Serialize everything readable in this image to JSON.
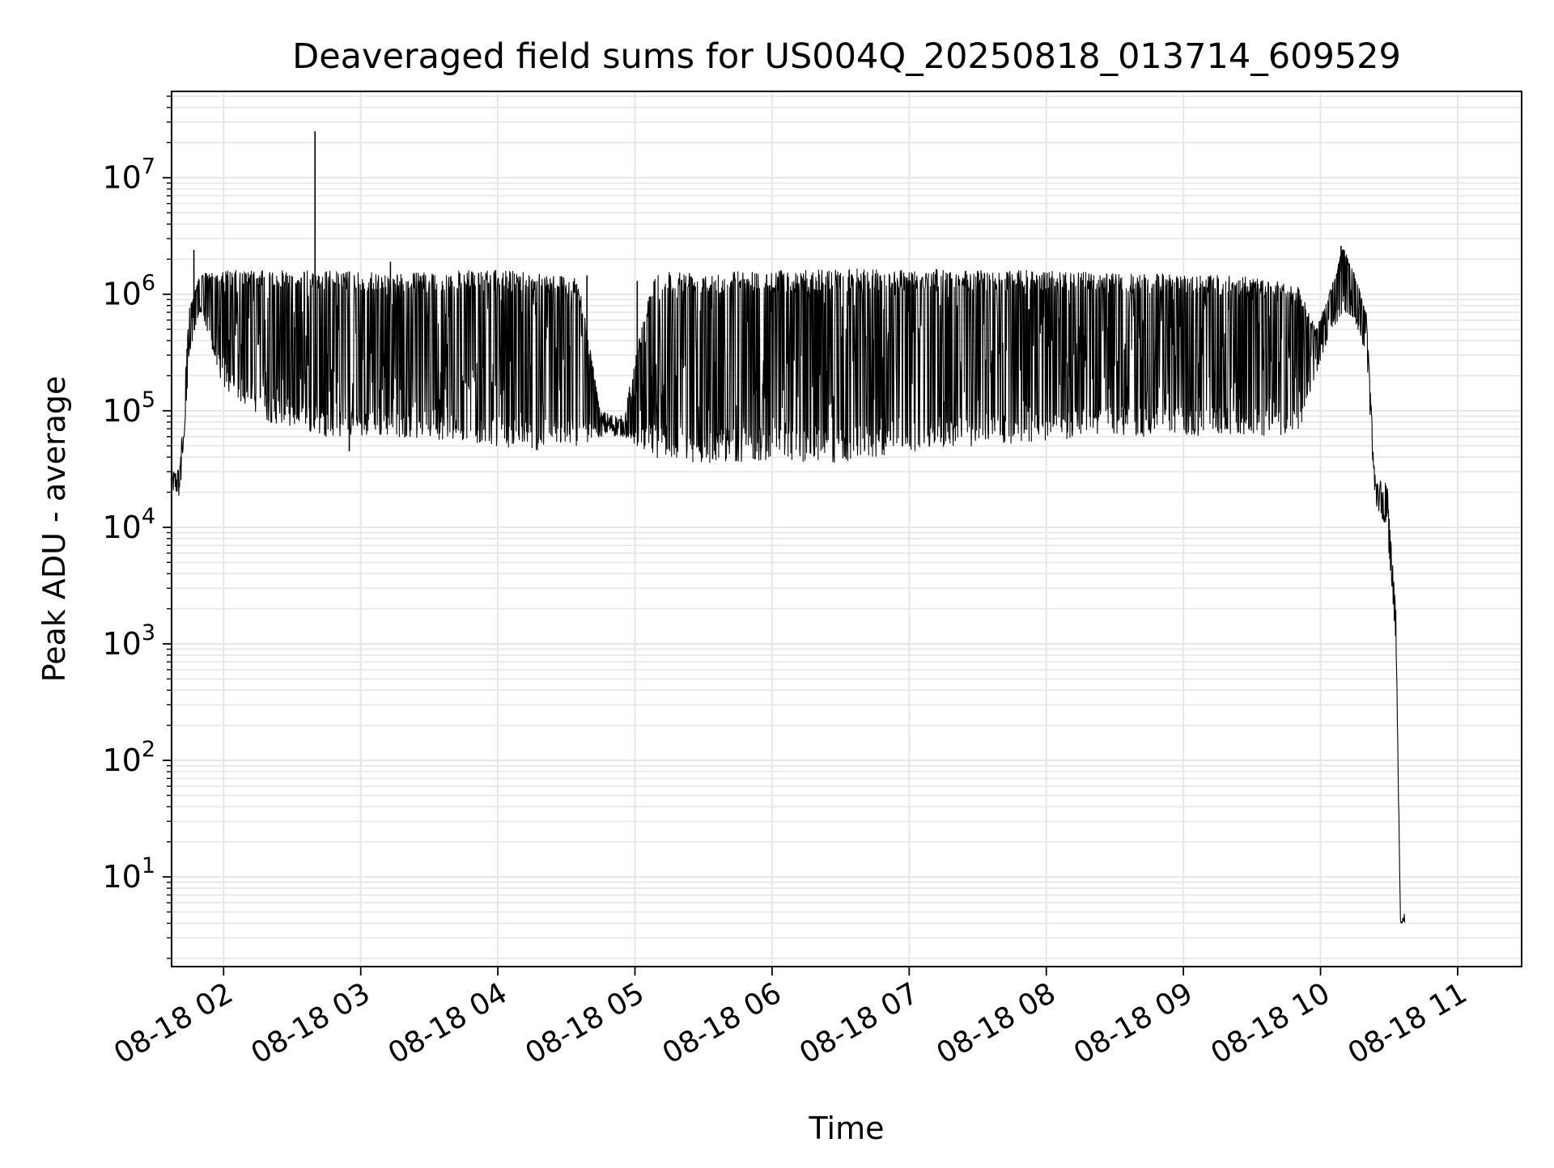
{
  "chart_data": {
    "type": "line",
    "title": "Deaveraged field sums for US004Q_20250818_013714_609529",
    "xlabel": "Time",
    "ylabel": "Peak ADU - average",
    "y_scale": "log",
    "ylim": [
      1.7,
      55000000
    ],
    "xlim": [
      "2025-08-18 01:37:14",
      "2025-08-18 11:28:00"
    ],
    "x_ticks": [
      {
        "value": "2025-08-18 02:00",
        "label": "08-18 02"
      },
      {
        "value": "2025-08-18 03:00",
        "label": "08-18 03"
      },
      {
        "value": "2025-08-18 04:00",
        "label": "08-18 04"
      },
      {
        "value": "2025-08-18 05:00",
        "label": "08-18 05"
      },
      {
        "value": "2025-08-18 06:00",
        "label": "08-18 06"
      },
      {
        "value": "2025-08-18 07:00",
        "label": "08-18 07"
      },
      {
        "value": "2025-08-18 08:00",
        "label": "08-18 08"
      },
      {
        "value": "2025-08-18 09:00",
        "label": "08-18 09"
      },
      {
        "value": "2025-08-18 10:00",
        "label": "08-18 10"
      },
      {
        "value": "2025-08-18 11:00",
        "label": "08-18 11"
      }
    ],
    "y_ticks": [
      {
        "value": 10,
        "base": "10",
        "exp": "1"
      },
      {
        "value": 100,
        "base": "10",
        "exp": "2"
      },
      {
        "value": 1000,
        "base": "10",
        "exp": "3"
      },
      {
        "value": 10000,
        "base": "10",
        "exp": "4"
      },
      {
        "value": 100000,
        "base": "10",
        "exp": "5"
      },
      {
        "value": 1000000,
        "base": "10",
        "exp": "6"
      },
      {
        "value": 10000000,
        "base": "10",
        "exp": "7"
      }
    ],
    "grid": true,
    "minor_grid": true,
    "legend": "none",
    "line_color": "#000000",
    "grid_color": "#e6e6e6",
    "series": [
      {
        "envelope": [
          {
            "t": "2025-08-18 01:37",
            "high": 30000,
            "low": 20000
          },
          {
            "t": "2025-08-18 01:41",
            "high": 35000,
            "low": 17000
          },
          {
            "t": "2025-08-18 01:45",
            "high": 800000,
            "low": 300000
          },
          {
            "t": "2025-08-18 01:50",
            "high": 1500000,
            "low": 700000
          },
          {
            "t": "2025-08-18 02:00",
            "high": 1600000,
            "low": 150000
          },
          {
            "t": "2025-08-18 02:20",
            "high": 1600000,
            "low": 80000
          },
          {
            "t": "2025-08-18 02:45",
            "high": 1600000,
            "low": 60000
          },
          {
            "t": "2025-08-18 03:15",
            "high": 1500000,
            "low": 60000
          },
          {
            "t": "2025-08-18 03:45",
            "high": 1600000,
            "low": 55000
          },
          {
            "t": "2025-08-18 04:15",
            "high": 1600000,
            "low": 45000
          },
          {
            "t": "2025-08-18 04:35",
            "high": 1400000,
            "low": 50000
          },
          {
            "t": "2025-08-18 04:45",
            "high": 100000,
            "low": 60000
          },
          {
            "t": "2025-08-18 04:55",
            "high": 90000,
            "low": 60000
          },
          {
            "t": "2025-08-18 05:08",
            "high": 1600000,
            "low": 40000
          },
          {
            "t": "2025-08-18 05:30",
            "high": 1600000,
            "low": 35000
          },
          {
            "t": "2025-08-18 06:00",
            "high": 1600000,
            "low": 38000
          },
          {
            "t": "2025-08-18 06:30",
            "high": 1650000,
            "low": 35000
          },
          {
            "t": "2025-08-18 07:00",
            "high": 1650000,
            "low": 45000
          },
          {
            "t": "2025-08-18 07:30",
            "high": 1600000,
            "low": 50000
          },
          {
            "t": "2025-08-18 08:00",
            "high": 1600000,
            "low": 55000
          },
          {
            "t": "2025-08-18 08:30",
            "high": 1500000,
            "low": 60000
          },
          {
            "t": "2025-08-18 09:00",
            "high": 1500000,
            "low": 60000
          },
          {
            "t": "2025-08-18 09:30",
            "high": 1400000,
            "low": 60000
          },
          {
            "t": "2025-08-18 09:50",
            "high": 1200000,
            "low": 60000
          },
          {
            "t": "2025-08-18 09:58",
            "high": 500000,
            "low": 200000
          },
          {
            "t": "2025-08-18 10:05",
            "high": 1200000,
            "low": 500000
          },
          {
            "t": "2025-08-18 10:10",
            "high": 2600000,
            "low": 700000
          },
          {
            "t": "2025-08-18 10:15",
            "high": 1500000,
            "low": 600000
          },
          {
            "t": "2025-08-18 10:20",
            "high": 700000,
            "low": 300000
          },
          {
            "t": "2025-08-18 10:24",
            "high": 25000,
            "low": 15000
          },
          {
            "t": "2025-08-18 10:29",
            "high": 25000,
            "low": 10000
          },
          {
            "t": "2025-08-18 10:33",
            "high": 2000,
            "low": 1000
          },
          {
            "t": "2025-08-18 10:35",
            "high": 4,
            "low": 4
          },
          {
            "t": "2025-08-18 10:37",
            "high": 5,
            "low": 4
          }
        ],
        "spikes": [
          {
            "t": "2025-08-18 01:47",
            "value": 2400000
          },
          {
            "t": "2025-08-18 02:40",
            "value": 25000000
          },
          {
            "t": "2025-08-18 03:13",
            "value": 1900000
          },
          {
            "t": "2025-08-18 02:55",
            "value": 45000
          },
          {
            "t": "2025-08-18 05:01",
            "value": 1300000
          },
          {
            "t": "2025-08-18 04:39",
            "value": 1450000
          },
          {
            "t": "2025-08-18 10:09",
            "value": 2600000
          }
        ]
      }
    ]
  }
}
